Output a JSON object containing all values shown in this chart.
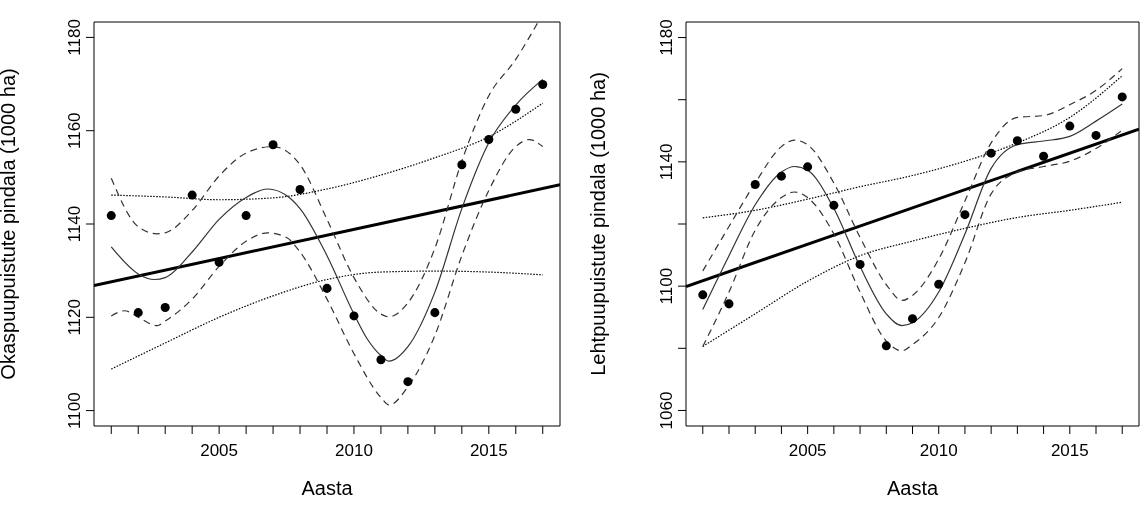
{
  "chart_data": [
    {
      "type": "scatter",
      "xlabel": "Aasta",
      "ylabel": "Okaspuupuistute pindala (1000 ha)",
      "xlim": [
        2000.36,
        2017.64
      ],
      "ylim": [
        1096.7,
        1183.3
      ],
      "xticks": [
        {
          "value": 2001,
          "label": null
        },
        {
          "value": 2002,
          "label": null
        },
        {
          "value": 2003,
          "label": null
        },
        {
          "value": 2004,
          "label": null
        },
        2005,
        {
          "value": 2006,
          "label": null
        },
        {
          "value": 2007,
          "label": null
        },
        {
          "value": 2008,
          "label": null
        },
        {
          "value": 2009,
          "label": null
        },
        2010,
        {
          "value": 2011,
          "label": null
        },
        {
          "value": 2012,
          "label": null
        },
        {
          "value": 2013,
          "label": null
        },
        {
          "value": 2014,
          "label": null
        },
        2015,
        {
          "value": 2016,
          "label": null
        },
        {
          "value": 2017,
          "label": null
        }
      ],
      "yticks": [
        1100,
        1120,
        1140,
        1160,
        1180
      ],
      "grid": false,
      "legend": false,
      "series": [
        {
          "marker": "circle",
          "color": "#000000",
          "x": [
            2001,
            2002,
            2003,
            2004,
            2005,
            2006,
            2007,
            2008,
            2009,
            2010,
            2011,
            2012,
            2013,
            2014,
            2015,
            2016,
            2017
          ],
          "values": [
            1141.8,
            1121.0,
            1122.1,
            1146.2,
            1131.8,
            1141.8,
            1157.0,
            1147.4,
            1126.2,
            1120.3,
            1110.9,
            1106.2,
            1121.0,
            1152.7,
            1158.1,
            1164.6,
            1169.9
          ]
        },
        {
          "type": "line",
          "marker": "none",
          "line_style": "solid",
          "color": "#000000",
          "x": [
            2000.36,
            2017.64
          ],
          "values": [
            1126.8,
            1148.4
          ]
        },
        {
          "type": "line",
          "marker": "none",
          "line_style": "dotted",
          "color": "#000000",
          "x": [
            2001,
            2003,
            2005,
            2007,
            2009,
            2011,
            2013,
            2015,
            2017
          ],
          "values": [
            1146.2,
            1145.8,
            1145.2,
            1145.6,
            1147.5,
            1150.5,
            1154.2,
            1158.7,
            1165.9
          ]
        },
        {
          "type": "line",
          "marker": "none",
          "line_style": "dotted",
          "color": "#000000",
          "x": [
            2001,
            2003,
            2005,
            2007,
            2009,
            2011,
            2013,
            2015,
            2017
          ],
          "values": [
            1108.9,
            1114.5,
            1120.0,
            1124.6,
            1128.1,
            1129.7,
            1129.9,
            1129.7,
            1129.1
          ]
        },
        {
          "type": "line",
          "marker": "none",
          "line_style": "solid",
          "color": "#333333",
          "x": [
            2001,
            2002,
            2002.6,
            2003,
            2004,
            2005,
            2006,
            2006.8,
            2007.5,
            2008,
            2009,
            2010,
            2010.5,
            2011,
            2011.3,
            2012,
            2013,
            2014,
            2015,
            2016,
            2017
          ],
          "values": [
            1135.1,
            1129.3,
            1128.1,
            1128.5,
            1134.0,
            1141.0,
            1145.7,
            1147.5,
            1146.1,
            1143.3,
            1133.2,
            1120.7,
            1115.3,
            1111.8,
            1110.6,
            1113.7,
            1125.4,
            1143.3,
            1157.4,
            1165.5,
            1171.0
          ]
        },
        {
          "type": "line",
          "marker": "none",
          "line_style": "dashed",
          "color": "#333333",
          "x": [
            2001,
            2002,
            2002.7,
            2003,
            2004,
            2005,
            2006,
            2007,
            2008,
            2009,
            2010,
            2011,
            2011.3,
            2012,
            2013,
            2014,
            2015,
            2016,
            2016.8
          ],
          "values": [
            1149.8,
            1139.4,
            1137.9,
            1138.1,
            1142.9,
            1150.3,
            1155.2,
            1156.6,
            1152.7,
            1141.0,
            1128.5,
            1120.7,
            1120.1,
            1123.1,
            1134.8,
            1153.5,
            1167.5,
            1175.3,
            1183.0
          ]
        },
        {
          "type": "line",
          "marker": "none",
          "line_style": "dashed",
          "color": "#333333",
          "x": [
            2001,
            2001.5,
            2002,
            2002.7,
            2003,
            2004,
            2005,
            2006,
            2006.8,
            2007.5,
            2008,
            2009,
            2010,
            2011,
            2011.3,
            2012,
            2013,
            2014,
            2015,
            2016,
            2016.5,
            2017
          ],
          "values": [
            1120.3,
            1121.4,
            1120.0,
            1118.2,
            1119.2,
            1123.9,
            1130.9,
            1136.3,
            1138.1,
            1137.1,
            1134.0,
            1123.9,
            1112.2,
            1102.8,
            1101.2,
            1105.1,
            1116.1,
            1133.2,
            1147.2,
            1156.6,
            1158.1,
            1156.6
          ]
        }
      ]
    },
    {
      "type": "scatter",
      "xlabel": "Aasta",
      "ylabel": "Lehtpuupuistute pindala (1000 ha)",
      "xlim": [
        2000.36,
        2017.64
      ],
      "ylim": [
        1055,
        1185
      ],
      "xticks": [
        {
          "value": 2001,
          "label": null
        },
        {
          "value": 2002,
          "label": null
        },
        {
          "value": 2003,
          "label": null
        },
        {
          "value": 2004,
          "label": null
        },
        2005,
        {
          "value": 2006,
          "label": null
        },
        {
          "value": 2007,
          "label": null
        },
        {
          "value": 2008,
          "label": null
        },
        {
          "value": 2009,
          "label": null
        },
        2010,
        {
          "value": 2011,
          "label": null
        },
        {
          "value": 2012,
          "label": null
        },
        {
          "value": 2013,
          "label": null
        },
        {
          "value": 2014,
          "label": null
        },
        2015,
        {
          "value": 2016,
          "label": null
        },
        {
          "value": 2017,
          "label": null
        }
      ],
      "yticks": [
        1060,
        {
          "value": 1080,
          "label": null
        },
        1100,
        {
          "value": 1120,
          "label": null
        },
        1140,
        {
          "value": 1160,
          "label": null
        },
        1180
      ],
      "grid": false,
      "legend": false,
      "series": [
        {
          "marker": "circle",
          "color": "#000000",
          "x": [
            2001,
            2002,
            2003,
            2004,
            2005,
            2006,
            2007,
            2008,
            2009,
            2010,
            2011,
            2012,
            2013,
            2014,
            2015,
            2016,
            2017
          ],
          "values": [
            1097.2,
            1094.3,
            1132.7,
            1135.4,
            1138.4,
            1126.0,
            1107.0,
            1080.8,
            1089.5,
            1100.6,
            1123.0,
            1142.8,
            1146.8,
            1141.8,
            1151.5,
            1148.5,
            1160.9
          ]
        },
        {
          "type": "line",
          "marker": "none",
          "line_style": "solid",
          "color": "#000000",
          "x": [
            2000.36,
            2017.64
          ],
          "values": [
            1099.9,
            1150.5
          ]
        },
        {
          "type": "line",
          "marker": "none",
          "line_style": "dotted",
          "color": "#000000",
          "x": [
            2001,
            2003,
            2005,
            2007,
            2009,
            2011,
            2013,
            2015,
            2017
          ],
          "values": [
            1122.0,
            1124.4,
            1128.0,
            1132.0,
            1135.6,
            1140.2,
            1146.1,
            1154.3,
            1167.7
          ]
        },
        {
          "type": "line",
          "marker": "none",
          "line_style": "dotted",
          "color": "#000000",
          "x": [
            2001,
            2003,
            2005,
            2007,
            2009,
            2011,
            2013,
            2015,
            2017
          ],
          "values": [
            1080.6,
            1091.1,
            1101.6,
            1109.8,
            1114.5,
            1118.6,
            1122.1,
            1124.4,
            1127.0
          ]
        },
        {
          "type": "line",
          "marker": "none",
          "line_style": "solid",
          "color": "#333333",
          "x": [
            2001,
            2002,
            2003,
            2004,
            2004.5,
            2005,
            2006,
            2007,
            2008,
            2008.6,
            2009,
            2010,
            2011,
            2012,
            2013,
            2014,
            2015,
            2016,
            2017
          ],
          "values": [
            1092.5,
            1109.8,
            1126.2,
            1136.7,
            1138.5,
            1137.3,
            1125.0,
            1106.3,
            1091.1,
            1087.3,
            1088.2,
            1098.1,
            1116.8,
            1137.9,
            1145.5,
            1146.7,
            1148.2,
            1153.1,
            1158.6
          ]
        },
        {
          "type": "line",
          "marker": "none",
          "line_style": "dashed",
          "color": "#333333",
          "x": [
            2001,
            2002,
            2003,
            2004,
            2004.5,
            2005,
            2006,
            2007,
            2008,
            2008.6,
            2009,
            2010,
            2011,
            2012,
            2013,
            2014,
            2015,
            2016,
            2017
          ],
          "values": [
            1104.9,
            1119.2,
            1133.2,
            1144.9,
            1147.0,
            1145.5,
            1133.2,
            1115.7,
            1100.5,
            1095.4,
            1097.0,
            1108.7,
            1127.4,
            1146.1,
            1154.3,
            1154.9,
            1158.4,
            1163.0,
            1170.0
          ]
        },
        {
          "type": "line",
          "marker": "none",
          "line_style": "dashed",
          "color": "#333333",
          "x": [
            2001,
            2002,
            2003,
            2004,
            2004.5,
            2005,
            2006,
            2007,
            2008,
            2008.6,
            2009,
            2010,
            2011,
            2012,
            2013,
            2014,
            2015,
            2016,
            2017
          ],
          "values": [
            1080.6,
            1098.1,
            1118.0,
            1128.5,
            1130.3,
            1128.5,
            1116.8,
            1098.1,
            1082.3,
            1079.2,
            1081.2,
            1089.9,
            1107.5,
            1129.7,
            1136.7,
            1138.5,
            1140.2,
            1144.3,
            1150.2
          ]
        }
      ]
    }
  ]
}
